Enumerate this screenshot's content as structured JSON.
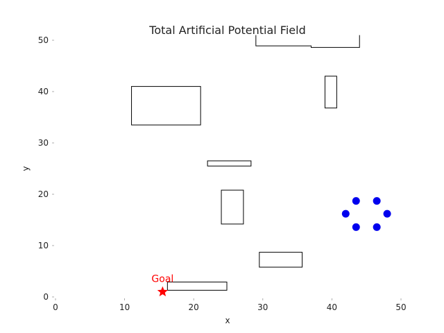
{
  "chart_data": {
    "type": "scatter",
    "title": "Total Artificial Potential Field",
    "xlabel": "x",
    "ylabel": "y",
    "xlim": [
      0,
      50
    ],
    "ylim": [
      0,
      50
    ],
    "xticks": [
      "0",
      "10",
      "20",
      "30",
      "40",
      "50"
    ],
    "yticks": [
      "0",
      "10",
      "20",
      "30",
      "40",
      "50"
    ],
    "grid": false,
    "goal": {
      "label": "Goal",
      "x": 15.5,
      "y": 1.0,
      "color": "#ff0000"
    },
    "agents": {
      "color": "#0000ee",
      "points": [
        {
          "x": 43.5,
          "y": 18.7
        },
        {
          "x": 46.5,
          "y": 18.7
        },
        {
          "x": 42.0,
          "y": 16.2
        },
        {
          "x": 48.0,
          "y": 16.2
        },
        {
          "x": 43.5,
          "y": 13.6
        },
        {
          "x": 46.5,
          "y": 13.6
        }
      ]
    },
    "obstacles": [
      {
        "x0": 11.0,
        "x1": 21.0,
        "y0": 33.5,
        "y1": 41.0
      },
      {
        "x0": 39.0,
        "x1": 40.7,
        "y0": 36.8,
        "y1": 43.0
      },
      {
        "x0": 22.0,
        "x1": 28.3,
        "y0": 25.5,
        "y1": 26.5
      },
      {
        "x0": 24.0,
        "x1": 27.2,
        "y0": 14.2,
        "y1": 20.8
      },
      {
        "x0": 29.5,
        "x1": 35.7,
        "y0": 5.8,
        "y1": 8.7
      },
      {
        "x0": 16.2,
        "x1": 24.8,
        "y0": 1.3,
        "y1": 2.9
      }
    ],
    "top_polyline": [
      {
        "x": 29.0,
        "y": 51.0
      },
      {
        "x": 29.0,
        "y": 48.9
      },
      {
        "x": 37.0,
        "y": 48.9
      },
      {
        "x": 37.0,
        "y": 48.6
      },
      {
        "x": 44.0,
        "y": 48.6
      },
      {
        "x": 44.0,
        "y": 51.0
      }
    ]
  }
}
